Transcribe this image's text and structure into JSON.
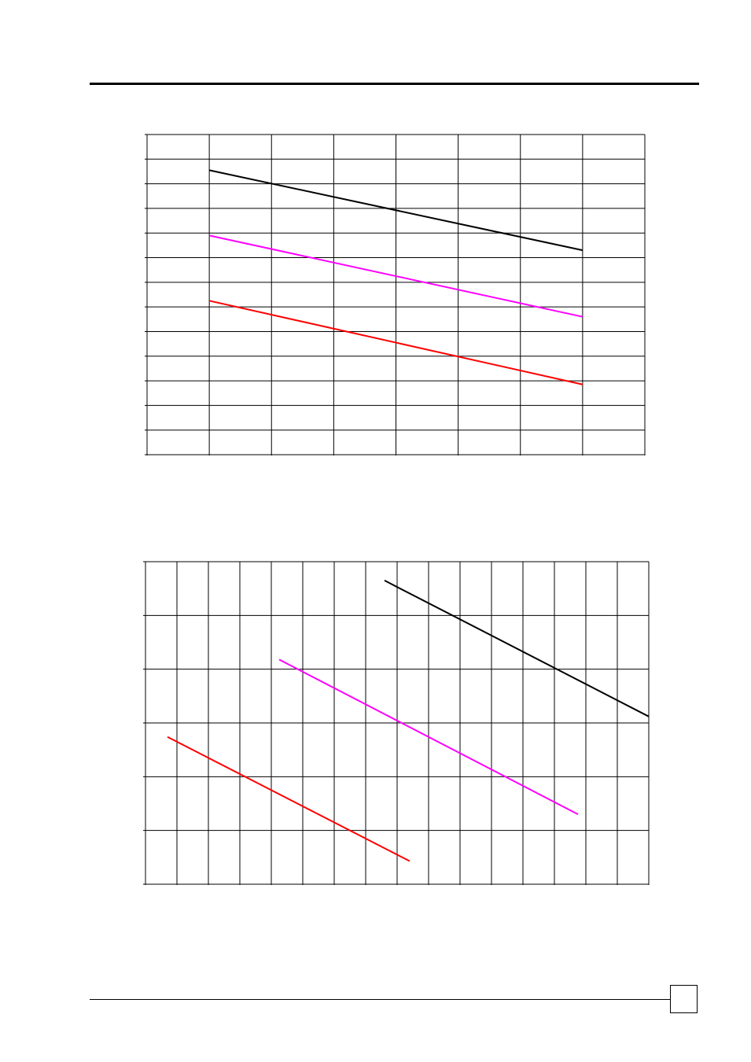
{
  "header": {
    "rule": "top-rule"
  },
  "footer": {
    "page_box": "page-number-box"
  },
  "chart_data": [
    {
      "type": "line",
      "title": "",
      "xlabel": "",
      "ylabel": "",
      "grid": true,
      "xlim": [
        0,
        8
      ],
      "ylim": [
        0,
        13
      ],
      "series": [
        {
          "color": "#000000",
          "x": [
            1,
            7
          ],
          "y": [
            11.55,
            8.3
          ]
        },
        {
          "color": "#ff00ff",
          "x": [
            1,
            7
          ],
          "y": [
            8.9,
            5.6
          ]
        },
        {
          "color": "#ff0000",
          "x": [
            1,
            7
          ],
          "y": [
            6.25,
            2.85
          ]
        }
      ]
    },
    {
      "type": "line",
      "title": "",
      "xlabel": "",
      "ylabel": "",
      "grid": true,
      "xlim": [
        0,
        16
      ],
      "ylim": [
        0,
        6
      ],
      "series": [
        {
          "color": "#000000",
          "x": [
            7.6,
            16.0
          ],
          "y": [
            5.65,
            3.12
          ]
        },
        {
          "color": "#ff00ff",
          "x": [
            4.25,
            13.75
          ],
          "y": [
            4.18,
            1.3
          ]
        },
        {
          "color": "#ff0000",
          "x": [
            0.7,
            8.4
          ],
          "y": [
            2.74,
            0.43
          ]
        }
      ]
    }
  ]
}
